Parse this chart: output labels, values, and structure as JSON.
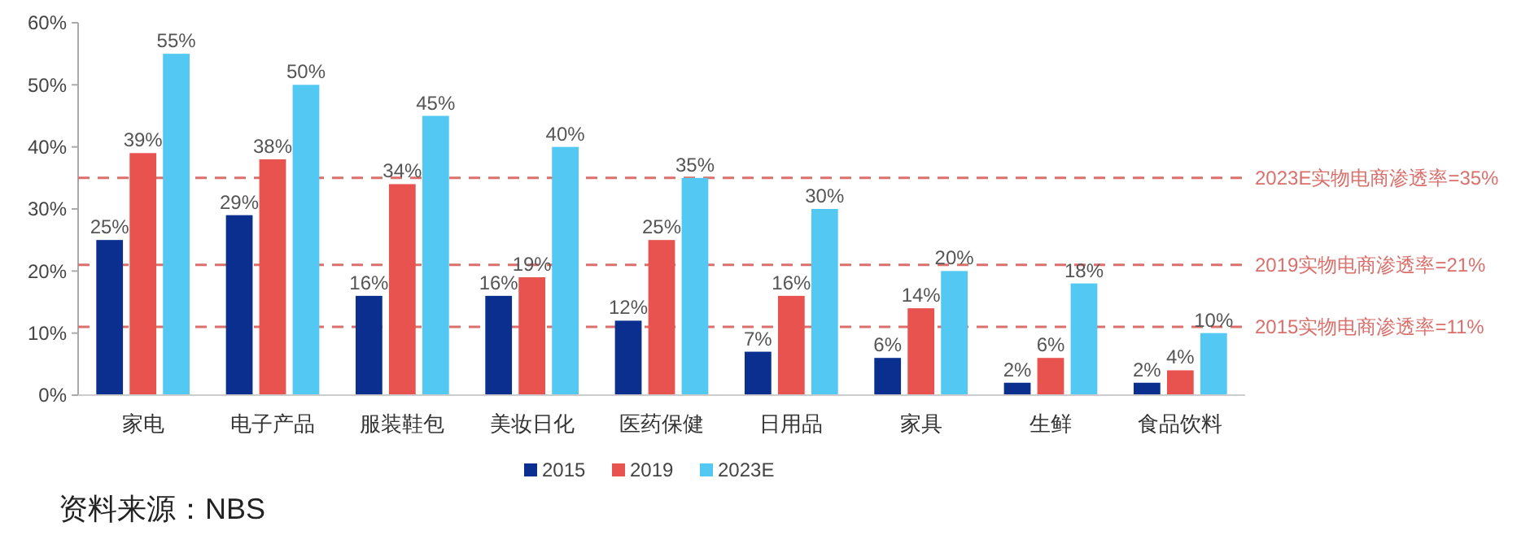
{
  "chart_data": {
    "type": "bar",
    "categories": [
      "家电",
      "电子产品",
      "服装鞋包",
      "美妆日化",
      "医药保健",
      "日用品",
      "家具",
      "生鲜",
      "食品饮料"
    ],
    "series": [
      {
        "name": "2015",
        "color": "#0b2f8f",
        "values": [
          25,
          29,
          16,
          16,
          12,
          7,
          6,
          2,
          2
        ],
        "value_labels": [
          "25%",
          "29%",
          "16%",
          "16%",
          "12%",
          "7%",
          "6%",
          "2%",
          "2%"
        ]
      },
      {
        "name": "2019",
        "color": "#e8534f",
        "values": [
          39,
          38,
          34,
          19,
          25,
          16,
          14,
          6,
          4
        ],
        "value_labels": [
          "39%",
          "38%",
          "34%",
          "19%",
          "25%",
          "16%",
          "14%",
          "6%",
          "4%"
        ]
      },
      {
        "name": "2023E",
        "color": "#52c8f2",
        "values": [
          55,
          50,
          45,
          40,
          35,
          30,
          20,
          18,
          10
        ],
        "value_labels": [
          "55%",
          "50%",
          "45%",
          "40%",
          "35%",
          "30%",
          "20%",
          "18%",
          "10%"
        ]
      }
    ],
    "ylim": [
      0,
      60
    ],
    "yticks": [
      {
        "value": 0,
        "label": "0%"
      },
      {
        "value": 10,
        "label": "10%"
      },
      {
        "value": 20,
        "label": "20%"
      },
      {
        "value": 30,
        "label": "30%"
      },
      {
        "value": 40,
        "label": "40%"
      },
      {
        "value": 50,
        "label": "50%"
      },
      {
        "value": 60,
        "label": "60%"
      }
    ],
    "grid": false,
    "legend": "bottom",
    "ref_lines": [
      {
        "axis": "y",
        "value": 35,
        "label": "2023E实物电商渗透率=35%",
        "color": "#d9706c",
        "line_style": "dashed"
      },
      {
        "axis": "y",
        "value": 21,
        "label": "2019实物电商渗透率=21%",
        "color": "#d9706c",
        "line_style": "dashed"
      },
      {
        "axis": "y",
        "value": 11,
        "label": "2015实物电商渗透率=11%",
        "color": "#d9706c",
        "line_style": "dashed"
      }
    ],
    "annotations": [
      "资料来源：NBS"
    ]
  }
}
